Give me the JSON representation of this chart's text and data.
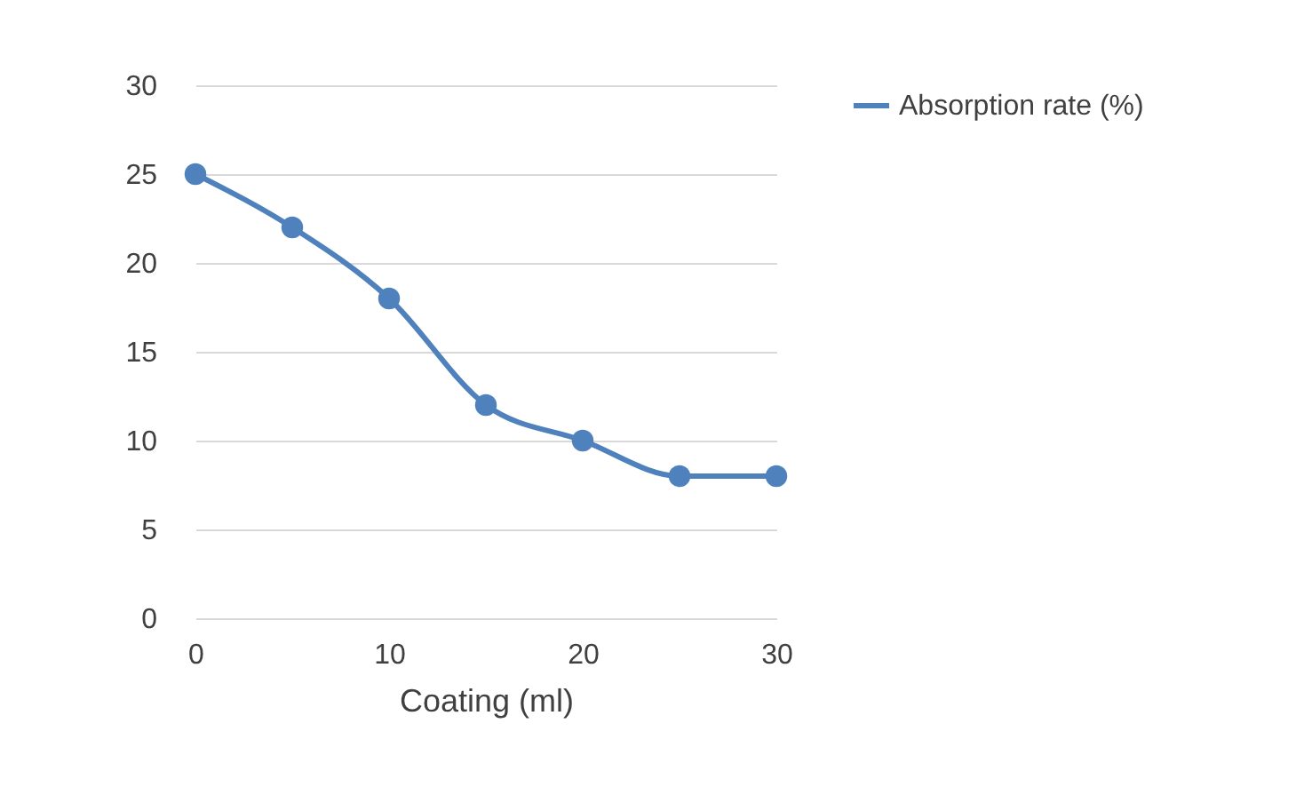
{
  "chart_data": {
    "type": "line",
    "xlabel": "Coating (ml)",
    "x": [
      0,
      5,
      10,
      15,
      20,
      25,
      30
    ],
    "series": [
      {
        "name": "Absorption rate (%)",
        "color": "#4f81bd",
        "values": [
          25,
          22,
          18,
          12,
          10,
          8,
          8
        ]
      }
    ],
    "xlim": [
      0,
      30
    ],
    "xticks": [
      0,
      10,
      20,
      30
    ],
    "ylim": [
      0,
      30
    ],
    "yticks": [
      0,
      5,
      10,
      15,
      20,
      25,
      30
    ],
    "grid": "y",
    "legend": "right",
    "marker": "circle",
    "line_style": "solid"
  }
}
